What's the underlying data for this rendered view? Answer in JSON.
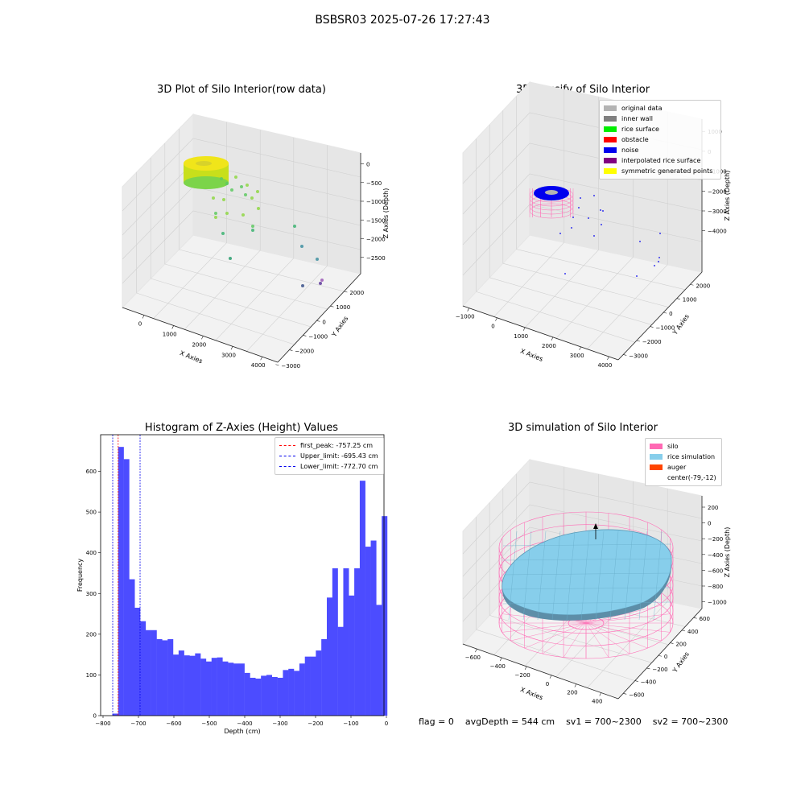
{
  "suptitle": "BSBSR03 2025-07-26 17:27:43",
  "colors": {
    "gray_data": "#b3b3b3",
    "inner_wall": "#7f7f7f",
    "rice_surface": "#00ee00",
    "obstacle": "#ff0000",
    "noise": "#0000ee",
    "interpolated": "#800080",
    "symmetric": "#ffff00",
    "hist_bar": "#4c4cff",
    "silo": "#ff69b4",
    "rice_sim": "#87ceeb",
    "auger": "#ff4500"
  },
  "plot1": {
    "title": "3D Plot of Silo Interior(row data)",
    "x_label": "X Axies",
    "y_label": "Y Axies",
    "z_label": "Z Axies (Depth)",
    "x_ticks": [
      "0",
      "1000",
      "2000",
      "3000",
      "4000"
    ],
    "y_ticks": [
      "2000",
      "1000",
      "0",
      "−1000",
      "−2000",
      "−3000"
    ],
    "z_ticks": [
      "0",
      "−500",
      "−1000",
      "−1500",
      "−2000",
      "−2500"
    ]
  },
  "plot2": {
    "title": "3D classify of Silo Interior",
    "x_label": "X Axies",
    "y_label": "Y Axies",
    "z_label": "Z Axies (Depth)",
    "x_ticks": [
      "−1000",
      "0",
      "1000",
      "2000",
      "3000",
      "4000"
    ],
    "y_ticks": [
      "2000",
      "1000",
      "0",
      "−1000",
      "−2000",
      "−3000"
    ],
    "z_ticks": [
      "1000",
      "0",
      "−1000",
      "−2000",
      "−3000",
      "−4000"
    ],
    "legend": [
      {
        "label": "original data",
        "color": "#b3b3b3"
      },
      {
        "label": "inner wall",
        "color": "#7f7f7f"
      },
      {
        "label": "rice surface",
        "color": "#00ee00"
      },
      {
        "label": "obstacle",
        "color": "#ff0000"
      },
      {
        "label": "noise",
        "color": "#0000ee"
      },
      {
        "label": "interpolated rice surface",
        "color": "#800080"
      },
      {
        "label": "symmetric generated points",
        "color": "#ffff00"
      }
    ]
  },
  "plot4": {
    "title": "3D simulation of Silo Interior",
    "x_label": "X Axies",
    "y_label": "Y Axies",
    "z_label": "Z Axies (Depth)",
    "x_ticks": [
      "−600",
      "−400",
      "−200",
      "0",
      "200",
      "400"
    ],
    "y_ticks": [
      "600",
      "400",
      "200",
      "0",
      "−200",
      "−400",
      "−600"
    ],
    "z_ticks": [
      "200",
      "0",
      "−200",
      "−400",
      "−600",
      "−800",
      "−1000"
    ],
    "legend": [
      {
        "label": "silo",
        "color": "#ff69b4"
      },
      {
        "label": "rice simulation",
        "color": "#87ceeb"
      },
      {
        "label": "auger",
        "color": "#ff4500"
      },
      {
        "label": "center(-79,-12)",
        "color": "none"
      }
    ]
  },
  "footer": {
    "flag": "flag = 0",
    "avg": "avgDepth = 544 cm",
    "sv1": "sv1 = 700~2300",
    "sv2": "sv2 = 700~2300"
  },
  "chart_data": {
    "type": "bar",
    "title": "Histogram of Z-Axies (Height) Values",
    "xlabel": "Depth (cm)",
    "ylabel": "Frequency",
    "xlim": [
      -800,
      0
    ],
    "ylim": [
      0,
      690
    ],
    "x_ticks": [
      -800,
      -700,
      -600,
      -500,
      -400,
      -300,
      -200,
      -100,
      0
    ],
    "y_ticks": [
      0,
      100,
      200,
      300,
      400,
      500,
      600
    ],
    "bin_width": 15.5,
    "bin_start": -772.7,
    "values": [
      5,
      660,
      630,
      335,
      265,
      232,
      210,
      210,
      188,
      185,
      188,
      150,
      160,
      148,
      147,
      153,
      140,
      133,
      142,
      143,
      133,
      130,
      128,
      128,
      105,
      93,
      91,
      98,
      100,
      95,
      93,
      112,
      115,
      110,
      128,
      145,
      145,
      160,
      188,
      290,
      362,
      218,
      362,
      295,
      362,
      577,
      415,
      430,
      272,
      490
    ],
    "vlines": [
      {
        "x": -757.25,
        "label": "first_peak: -757.25 cm",
        "color": "#ff0000"
      },
      {
        "x": -695.43,
        "label": "Upper_limit: -695.43 cm",
        "color": "#0000ee"
      },
      {
        "x": -772.7,
        "label": "Lower_limit: -772.70 cm",
        "color": "#0000ee"
      }
    ]
  }
}
